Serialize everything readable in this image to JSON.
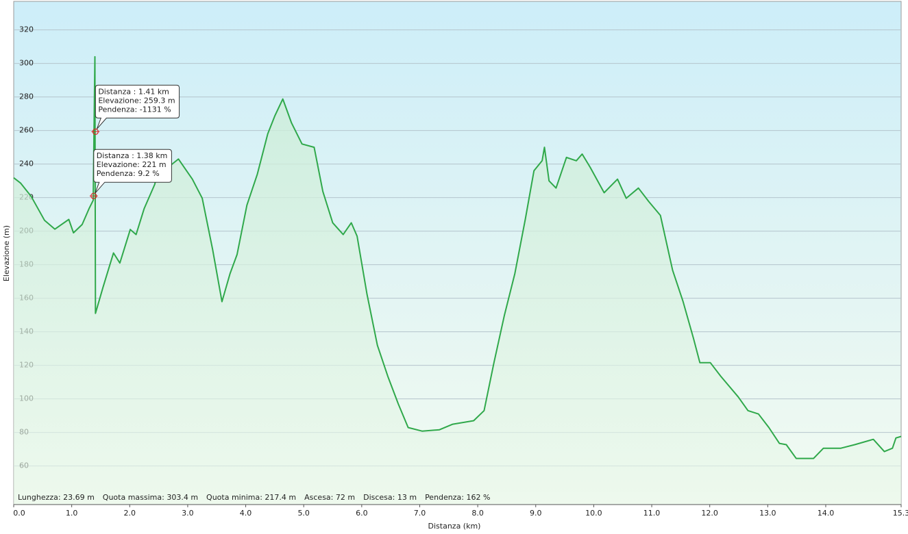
{
  "chart_data": {
    "type": "area",
    "x_label": "Distanza  (km)",
    "y_label": "Elevazione (m)",
    "x": [
      0,
      0.12,
      0.3,
      0.53,
      0.71,
      0.95,
      1.03,
      1.18,
      1.3,
      1.37,
      1.4,
      1.41,
      1.54,
      1.72,
      1.83,
      2.01,
      2.11,
      2.25,
      2.43,
      2.54,
      2.66,
      2.84,
      3.08,
      3.25,
      3.43,
      3.59,
      3.73,
      3.85,
      4.02,
      4.2,
      4.38,
      4.5,
      4.64,
      4.79,
      4.97,
      5.18,
      5.33,
      5.5,
      5.68,
      5.82,
      5.92,
      6.09,
      6.27,
      6.45,
      6.63,
      6.8,
      7.04,
      7.34,
      7.57,
      7.93,
      8.11,
      8.28,
      8.46,
      8.64,
      8.82,
      8.97,
      9.11,
      9.15,
      9.23,
      9.35,
      9.53,
      9.7,
      9.8,
      9.94,
      10.18,
      10.41,
      10.56,
      10.77,
      10.95,
      11.15,
      11.36,
      11.54,
      11.72,
      11.83,
      12.01,
      12.19,
      12.49,
      12.66,
      12.84,
      13.02,
      13.2,
      13.32,
      13.49,
      13.79,
      13.96,
      14.26,
      14.5,
      14.82,
      15.01,
      15.15,
      15.21,
      15.3
    ],
    "series": [
      {
        "color": "#2fa84a",
        "values": [
          231.8,
          228.6,
          220.8,
          206.5,
          201.2,
          207,
          199,
          204,
          213.5,
          218.4,
          304,
          151,
          166.5,
          187,
          181,
          201,
          198,
          213.5,
          227.8,
          242,
          238,
          243,
          231,
          219.6,
          189,
          158,
          174.7,
          186,
          215.5,
          234,
          258,
          268.6,
          278.8,
          264.5,
          252,
          250,
          223.7,
          205,
          198,
          205,
          197,
          162.5,
          132,
          113.5,
          97,
          82.9,
          80.8,
          81.6,
          84.9,
          87,
          93,
          121.6,
          150,
          174.7,
          207,
          236,
          242,
          250,
          230,
          225.7,
          244,
          242,
          246,
          238,
          222.9,
          231,
          219.6,
          225.7,
          217.6,
          209.4,
          176.7,
          158,
          136,
          121.6,
          121.6,
          113.5,
          101.2,
          93,
          91,
          82.9,
          73.5,
          72.7,
          64.5,
          64.5,
          70.6,
          70.6,
          72.7,
          75.9,
          68.6,
          70.6,
          76.7,
          77.6
        ]
      }
    ],
    "xlim": [
      0,
      15.3
    ],
    "ylim": [
      37,
      337
    ],
    "xticks": [
      {
        "value": 0,
        "label": "0.0"
      },
      {
        "value": 1,
        "label": "1.0"
      },
      {
        "value": 2,
        "label": "2.0"
      },
      {
        "value": 3,
        "label": "3.0"
      },
      {
        "value": 4,
        "label": "4.0"
      },
      {
        "value": 5,
        "label": "5.0"
      },
      {
        "value": 6,
        "label": "6.0"
      },
      {
        "value": 7,
        "label": "7.0"
      },
      {
        "value": 8,
        "label": "8.0"
      },
      {
        "value": 9,
        "label": "9.0"
      },
      {
        "value": 10,
        "label": "10.0"
      },
      {
        "value": 11,
        "label": "11.0"
      },
      {
        "value": 12,
        "label": "12.0"
      },
      {
        "value": 13,
        "label": "13.0"
      },
      {
        "value": 14,
        "label": "14.0"
      },
      15.3
    ],
    "yticks": [
      60,
      80,
      100,
      120,
      140,
      160,
      180,
      200,
      220,
      240,
      260,
      280,
      300,
      320
    ],
    "grid": true,
    "markers": [
      {
        "x": 1.41,
        "y": 259.3,
        "lines": [
          "Distanza  : 1.41 km",
          "Elevazione: 259.3 m",
          "Pendenza: -1131 %"
        ]
      },
      {
        "x": 1.38,
        "y": 221,
        "lines": [
          "Distanza  : 1.38 km",
          "Elevazione: 221 m",
          "Pendenza: 9.2 %"
        ]
      }
    ],
    "stats": [
      "Lunghezza: 23.69 m",
      "Quota massima: 303.4 m",
      "Quota minima: 217.4 m",
      "Ascesa: 72 m",
      "Discesa: 13 m",
      "Pendenza: 162 %"
    ]
  }
}
